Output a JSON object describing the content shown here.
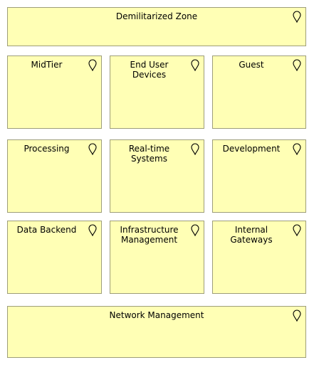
{
  "zones": {
    "dmz": {
      "label": "Demilitarized Zone",
      "icon": "location-pin-icon"
    },
    "mid": {
      "label": "MidTier",
      "icon": "location-pin-icon"
    },
    "end": {
      "label": "End User\nDevices",
      "icon": "location-pin-icon"
    },
    "guest": {
      "label": "Guest",
      "icon": "location-pin-icon"
    },
    "proc": {
      "label": "Processing",
      "icon": "location-pin-icon"
    },
    "rt": {
      "label": "Real-time\nSystems",
      "icon": "location-pin-icon"
    },
    "dev": {
      "label": "Development",
      "icon": "location-pin-icon"
    },
    "data": {
      "label": "Data Backend",
      "icon": "location-pin-icon"
    },
    "infra": {
      "label": "Infrastructure\nManagement",
      "icon": "location-pin-icon"
    },
    "gw": {
      "label": "Internal\nGateways",
      "icon": "location-pin-icon"
    },
    "net": {
      "label": "Network Management",
      "icon": "location-pin-icon"
    }
  },
  "colors": {
    "zone_fill": "#ffffb5",
    "zone_border": "#9e9e7a",
    "text": "#000000"
  }
}
